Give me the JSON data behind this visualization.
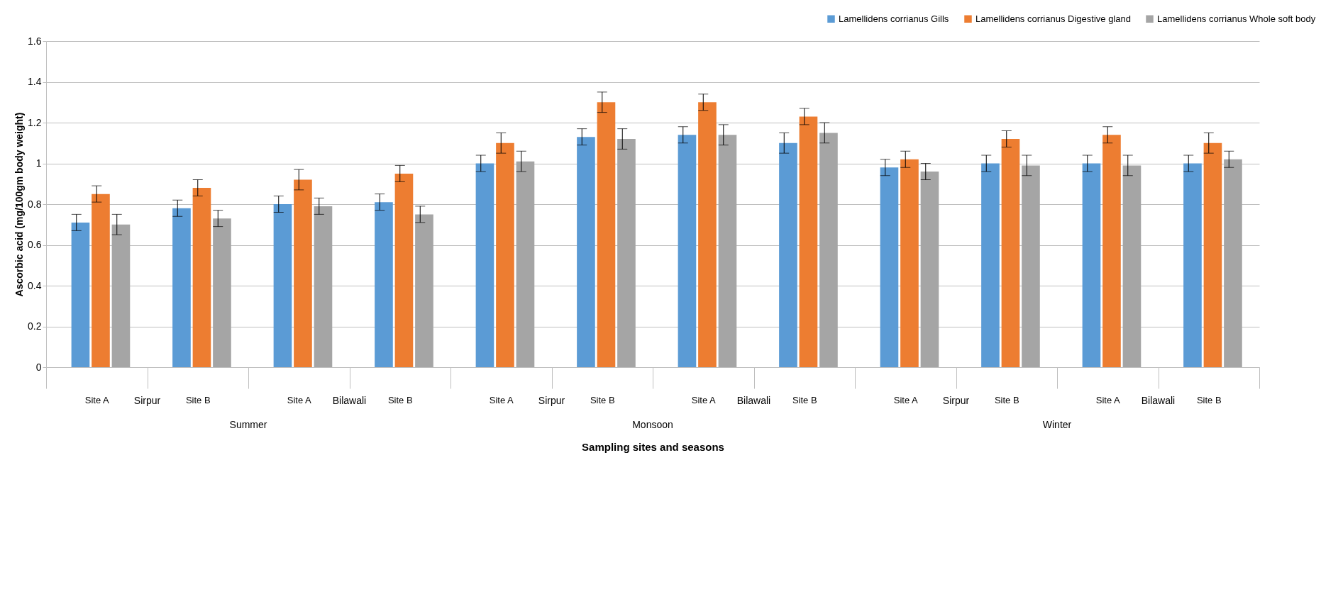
{
  "chart_data": {
    "type": "bar",
    "xlabel": "Sampling sites and seasons",
    "ylabel": "Ascorbic acid (mg/100gm body weight)",
    "categories": [
      "Site A",
      "Site B",
      "Site A",
      "Site B",
      "Site A",
      "Site B",
      "Site A",
      "Site B",
      "Site A",
      "Site B",
      "Site A",
      "Site B"
    ],
    "annotations": [
      "Sirpur",
      "Bilawali",
      "Sirpur",
      "Bilawali",
      "Sirpur",
      "Bilawali",
      "Summer",
      "Monsoon",
      "Winter"
    ],
    "series": [
      {
        "name": "Lamellidens corrianus Gills",
        "color": "#5b9bd5",
        "values": [
          0.71,
          0.78,
          0.8,
          0.81,
          1.0,
          1.13,
          1.14,
          1.1,
          0.98,
          1.0,
          1.0,
          1.0
        ],
        "errors": [
          0.04,
          0.04,
          0.04,
          0.04,
          0.04,
          0.04,
          0.04,
          0.05,
          0.04,
          0.04,
          0.04,
          0.04
        ]
      },
      {
        "name": "Lamellidens corrianus Digestive gland",
        "color": "#ed7d31",
        "values": [
          0.85,
          0.88,
          0.92,
          0.95,
          1.1,
          1.3,
          1.3,
          1.23,
          1.02,
          1.12,
          1.14,
          1.1
        ],
        "errors": [
          0.04,
          0.04,
          0.05,
          0.04,
          0.05,
          0.05,
          0.04,
          0.04,
          0.04,
          0.04,
          0.04,
          0.05
        ]
      },
      {
        "name": "Lamellidens corrianus Whole soft body",
        "color": "#a5a5a5",
        "values": [
          0.7,
          0.73,
          0.79,
          0.75,
          1.01,
          1.12,
          1.14,
          1.15,
          0.96,
          0.99,
          0.99,
          1.02
        ],
        "errors": [
          0.05,
          0.04,
          0.04,
          0.04,
          0.05,
          0.05,
          0.05,
          0.05,
          0.04,
          0.05,
          0.05,
          0.04
        ]
      }
    ],
    "ylim": [
      0,
      1.6
    ],
    "yticks": [
      0,
      0.2,
      0.4,
      0.6,
      0.8,
      1,
      1.2,
      1.4,
      1.6
    ],
    "grid": "y",
    "legend": "top right"
  }
}
